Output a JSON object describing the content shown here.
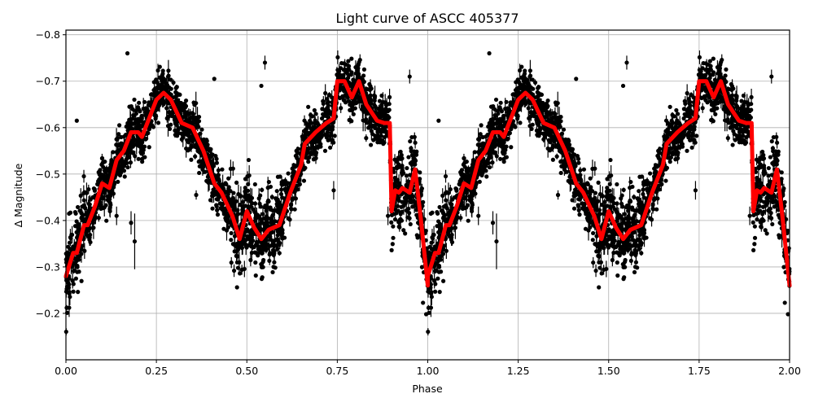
{
  "chart_data": {
    "type": "scatter",
    "title": "Light curve of ASCC 405377",
    "xlabel": "Phase",
    "ylabel": "Δ Magnitude",
    "xlim": [
      0.0,
      2.0
    ],
    "ylim": [
      -0.81,
      -0.1
    ],
    "y_inverted": true,
    "grid": true,
    "legend": null,
    "x_ticks": [
      0.0,
      0.25,
      0.5,
      0.75,
      1.0,
      1.25,
      1.5,
      1.75,
      2.0
    ],
    "x_tick_labels": [
      "0.00",
      "0.25",
      "0.50",
      "0.75",
      "1.00",
      "1.25",
      "1.50",
      "1.75",
      "2.00"
    ],
    "y_ticks": [
      -0.8,
      -0.7,
      -0.6,
      -0.5,
      -0.4,
      -0.3,
      -0.2
    ],
    "y_tick_labels": [
      "−0.8",
      "−0.7",
      "−0.6",
      "−0.5",
      "−0.4",
      "−0.3",
      "−0.2"
    ],
    "series": [
      {
        "name": "observations",
        "kind": "errorbar-scatter",
        "color": "#000000",
        "description": "Dense black points with error bars, phase-folded and repeated over two cycles; scatter of roughly ±0.1 mag around the model curve",
        "outliers": [
          {
            "x": 0.14,
            "y": -0.41,
            "err": 0.02
          },
          {
            "x": 0.18,
            "y": -0.395,
            "err": 0.025
          },
          {
            "x": 0.19,
            "y": -0.355,
            "err": 0.06
          },
          {
            "x": 0.03,
            "y": -0.615,
            "err": 0.0
          },
          {
            "x": 0.36,
            "y": -0.455,
            "err": 0.01
          },
          {
            "x": 0.41,
            "y": -0.705,
            "err": 0.0
          },
          {
            "x": 0.55,
            "y": -0.74,
            "err": 0.015
          },
          {
            "x": 0.74,
            "y": -0.465,
            "err": 0.02
          },
          {
            "x": 0.89,
            "y": -0.41,
            "err": 0.02
          },
          {
            "x": 0.95,
            "y": -0.71,
            "err": 0.015
          },
          {
            "x": 0.17,
            "y": -0.76,
            "err": 0.0
          },
          {
            "x": 0.54,
            "y": -0.69,
            "err": 0.0
          }
        ]
      },
      {
        "name": "model",
        "kind": "line",
        "color": "#ff0000",
        "linewidth": 5,
        "x": [
          0.0,
          0.02,
          0.03,
          0.05,
          0.06,
          0.08,
          0.1,
          0.12,
          0.14,
          0.16,
          0.18,
          0.2,
          0.21,
          0.23,
          0.25,
          0.27,
          0.29,
          0.32,
          0.35,
          0.38,
          0.41,
          0.43,
          0.46,
          0.48,
          0.5,
          0.52,
          0.54,
          0.56,
          0.59,
          0.62,
          0.65,
          0.66,
          0.69,
          0.72,
          0.74,
          0.75,
          0.77,
          0.79,
          0.81,
          0.83,
          0.86,
          0.88,
          0.895,
          0.9,
          0.91,
          0.92,
          0.93,
          0.95,
          0.965,
          0.98,
          1.0
        ],
        "y": [
          -0.28,
          -0.33,
          -0.33,
          -0.39,
          -0.39,
          -0.43,
          -0.48,
          -0.47,
          -0.53,
          -0.55,
          -0.59,
          -0.59,
          -0.58,
          -0.62,
          -0.66,
          -0.675,
          -0.66,
          -0.61,
          -0.6,
          -0.55,
          -0.48,
          -0.46,
          -0.41,
          -0.36,
          -0.42,
          -0.385,
          -0.36,
          -0.38,
          -0.39,
          -0.46,
          -0.52,
          -0.565,
          -0.59,
          -0.61,
          -0.62,
          -0.7,
          -0.7,
          -0.665,
          -0.7,
          -0.65,
          -0.615,
          -0.61,
          -0.61,
          -0.42,
          -0.465,
          -0.46,
          -0.47,
          -0.46,
          -0.51,
          -0.41,
          -0.26
        ],
        "repeat_period": 1.0,
        "cycles": 2
      }
    ]
  }
}
